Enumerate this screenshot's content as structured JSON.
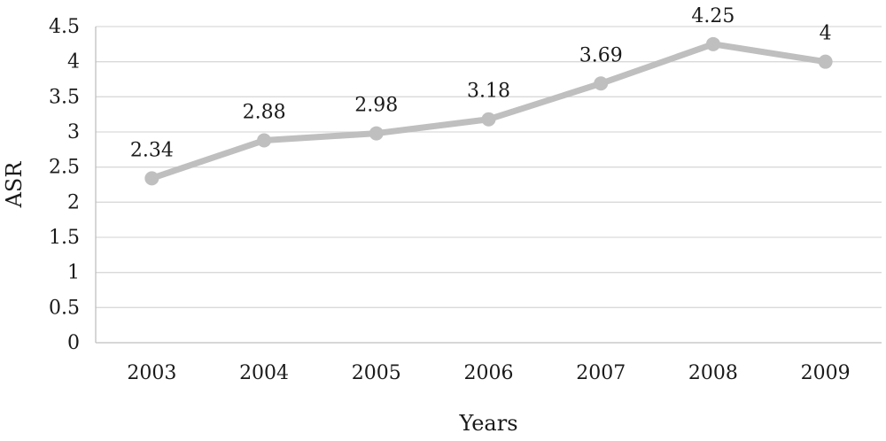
{
  "chart_data": {
    "type": "line",
    "title": "",
    "xlabel": "Years",
    "ylabel": "ASR",
    "categories": [
      "2003",
      "2004",
      "2005",
      "2006",
      "2007",
      "2008",
      "2009"
    ],
    "series": [
      {
        "values": [
          2.34,
          2.88,
          2.98,
          3.18,
          3.69,
          4.25,
          4
        ],
        "color": "#bfbfbf"
      }
    ],
    "data_labels": [
      "2.34",
      "2.88",
      "2.98",
      "3.18",
      "3.69",
      "4.25",
      "4"
    ],
    "y_ticks": [
      "0",
      "0.5",
      "1",
      "1.5",
      "2",
      "2.5",
      "3",
      "3.5",
      "4",
      "4.5"
    ],
    "ylim": [
      0,
      4.5
    ],
    "grid": true,
    "legend": "none",
    "colors": {
      "line": "#bfbfbf",
      "grid": "#d9d9d9",
      "axis": "#bfbfbf",
      "text": "#1a1a1a",
      "tick_1": "#7f7f7f"
    }
  }
}
